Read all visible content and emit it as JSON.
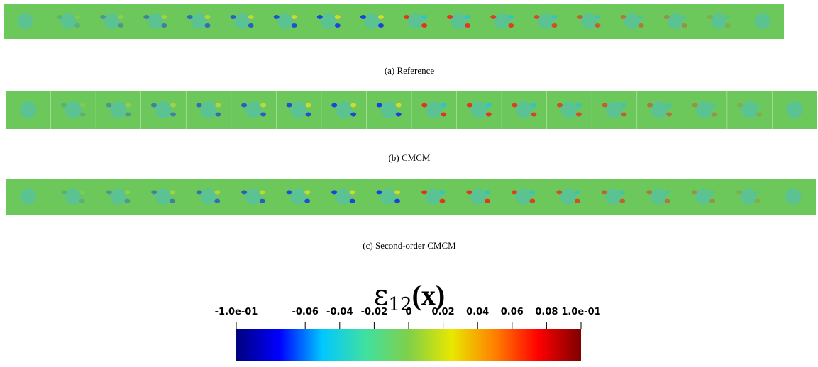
{
  "panels": [
    {
      "caption": "(a) Reference"
    },
    {
      "caption": "(b) CMCM"
    },
    {
      "caption": "(c) Second-order CMCM"
    }
  ],
  "colorbar": {
    "symbol": "ε",
    "subscript": "12",
    "argument": "(x)",
    "range": [
      -0.1,
      0.1
    ],
    "ticks": [
      {
        "value": -0.1,
        "label": "-1.0e-01"
      },
      -0.06,
      -0.04,
      -0.02,
      0,
      0.02,
      0.04,
      0.06,
      0.08,
      {
        "value": 0.1,
        "label": "1.0e-01"
      }
    ],
    "colormap": [
      "#00007f",
      "#0000ff",
      "#00c8ff",
      "#40e0a0",
      "#7fd04a",
      "#e8e800",
      "#ff8000",
      "#ff0000",
      "#7f0000"
    ]
  }
}
